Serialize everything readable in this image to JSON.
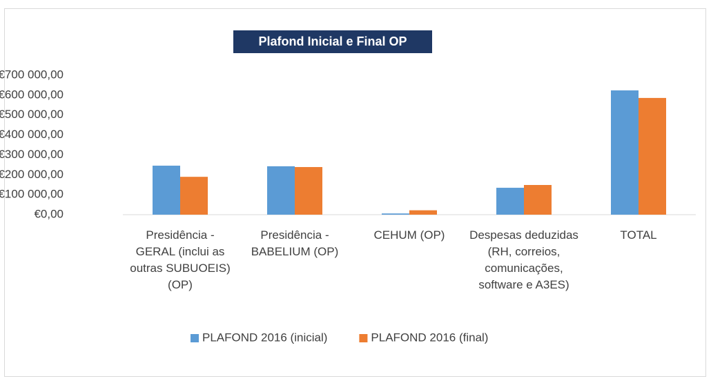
{
  "chart_data": {
    "type": "bar",
    "title": "Plafond Inicial e Final OP",
    "categories": [
      "Presidência - GERAL (inclui as outras SUBUOEIS) (OP)",
      "Presidência - BABELIUM (OP)",
      "CEHUM (OP)",
      "Despesas deduzidas (RH, correios, comunicações, software e A3ES)",
      "TOTAL"
    ],
    "series": [
      {
        "name": "PLAFOND 2016 (inicial)",
        "color": "#5b9bd5",
        "values": [
          246000,
          243000,
          6000,
          135000,
          624000
        ]
      },
      {
        "name": "PLAFOND 2016 (final)",
        "color": "#ed7d31",
        "values": [
          190000,
          239000,
          22000,
          149000,
          586000
        ]
      }
    ],
    "ylim": [
      0,
      700000
    ],
    "yticks": [
      {
        "value": 0,
        "label": "€0,00"
      },
      {
        "value": 100000,
        "label": "€100 000,00"
      },
      {
        "value": 200000,
        "label": "€200 000,00"
      },
      {
        "value": 300000,
        "label": "€300 000,00"
      },
      {
        "value": 400000,
        "label": "€400 000,00"
      },
      {
        "value": 500000,
        "label": "€500 000,00"
      },
      {
        "value": 600000,
        "label": "€600 000,00"
      },
      {
        "value": 700000,
        "label": "€700 000,00"
      }
    ],
    "grid": false,
    "legend": "bottom"
  }
}
